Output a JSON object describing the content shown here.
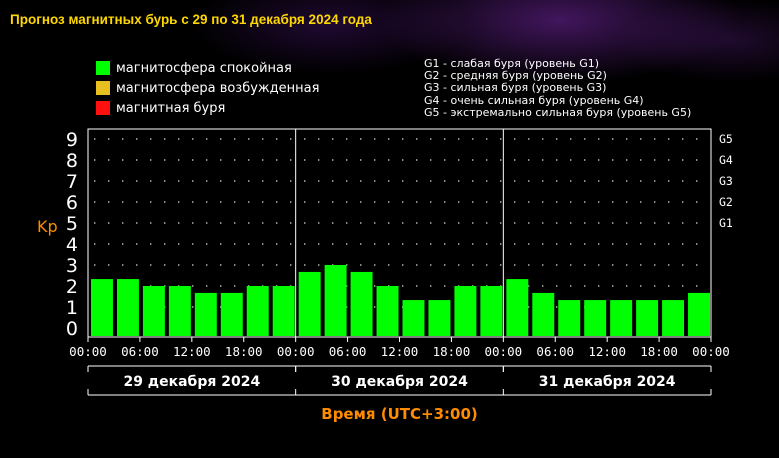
{
  "title": "Прогноз магнитных бурь с 29 по 31 декабря 2024 года",
  "legend": [
    {
      "label": "магнитосфера спокойная",
      "color": "#00ff00"
    },
    {
      "label": "магнитосфера возбужденная",
      "color": "#e6c020"
    },
    {
      "label": "магнитная буря",
      "color": "#ff1010"
    }
  ],
  "g_levels": [
    "G1 - слабая буря (уровень G1)",
    "G2 - средняя буря (уровень G2)",
    "G3 - сильная буря (уровень G3)",
    "G4 - очень сильная буря (уровень G4)",
    "G5 - экстремально сильная буря (уровень G5)"
  ],
  "colors": {
    "quiet": "#00ff00",
    "axis_label": "#ff8c00",
    "title": "#ffd700",
    "text": "#ffffff"
  },
  "chart_data": {
    "type": "bar",
    "title": "Прогноз магнитных бурь с 29 по 31 декабря 2024 года",
    "ylabel": "Kp",
    "xlabel": "Время (UTC+3:00)",
    "ylim": [
      0,
      9
    ],
    "yticks": [
      "0",
      "1",
      "2",
      "3",
      "4",
      "5",
      "6",
      "7",
      "8",
      "9"
    ],
    "g_ticks": [
      {
        "value": 5,
        "label": "G1"
      },
      {
        "value": 6,
        "label": "G2"
      },
      {
        "value": 7,
        "label": "G3"
      },
      {
        "value": 8,
        "label": "G4"
      },
      {
        "value": 9,
        "label": "G5"
      }
    ],
    "grid": true,
    "time_ticks": [
      "00:00",
      "06:00",
      "12:00",
      "18:00",
      "00:00",
      "06:00",
      "12:00",
      "18:00",
      "00:00",
      "06:00",
      "12:00",
      "18:00",
      "00:00"
    ],
    "days": [
      {
        "label": "29 декабря 2024",
        "values": [
          2.33,
          2.33,
          2.0,
          2.0,
          1.67,
          1.67,
          2.0,
          2.0
        ]
      },
      {
        "label": "30 декабря 2024",
        "values": [
          2.67,
          3.0,
          2.67,
          2.0,
          1.33,
          1.33,
          2.0,
          2.0
        ]
      },
      {
        "label": "31 декабря 2024",
        "values": [
          2.33,
          1.67,
          1.33,
          1.33,
          1.33,
          1.33,
          1.33,
          1.67
        ]
      }
    ]
  }
}
